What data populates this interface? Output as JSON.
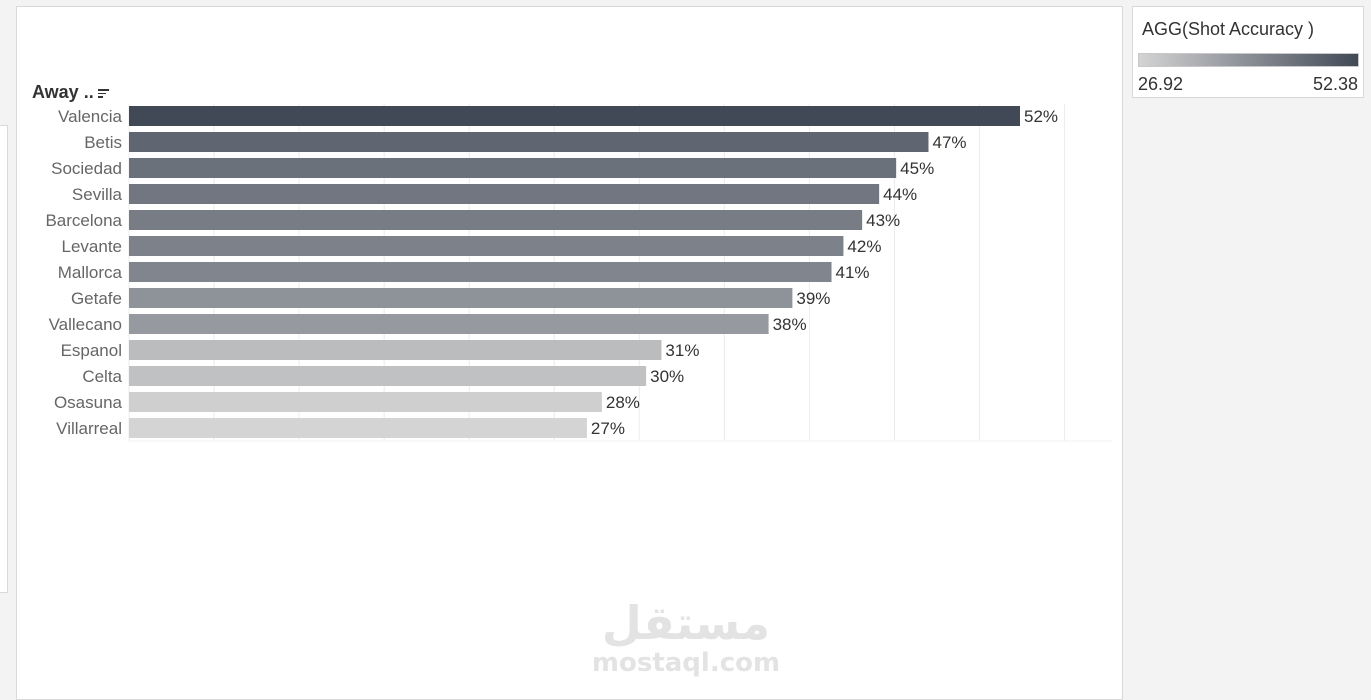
{
  "header": {
    "axis_field_label": "Away .."
  },
  "legend": {
    "title": "AGG(Shot Accuracy )",
    "min_label": "26.92",
    "max_label": "52.38",
    "color_low": "#d4d4d4",
    "color_high": "#414957"
  },
  "watermark": {
    "arabic": "مستقل",
    "latin": "mostaql.com"
  },
  "chart_data": {
    "type": "bar",
    "orientation": "horizontal",
    "categories": [
      "Valencia",
      "Betis",
      "Sociedad",
      "Sevilla",
      "Barcelona",
      "Levante",
      "Mallorca",
      "Getafe",
      "Vallecano",
      "Espanol",
      "Celta",
      "Osasuna",
      "Villarreal"
    ],
    "values": [
      52.38,
      47.0,
      45.1,
      44.1,
      43.1,
      42.0,
      41.3,
      39.0,
      37.6,
      31.3,
      30.4,
      27.8,
      26.92
    ],
    "data_labels": [
      "52%",
      "47%",
      "45%",
      "44%",
      "43%",
      "42%",
      "41%",
      "39%",
      "38%",
      "31%",
      "30%",
      "28%",
      "27%"
    ],
    "title": "",
    "xlabel": "",
    "ylabel": "Away ..",
    "xlim": [
      0,
      55
    ],
    "grid": true,
    "legend": "top-right",
    "color_scale": {
      "min": 26.92,
      "max": 52.38
    }
  }
}
